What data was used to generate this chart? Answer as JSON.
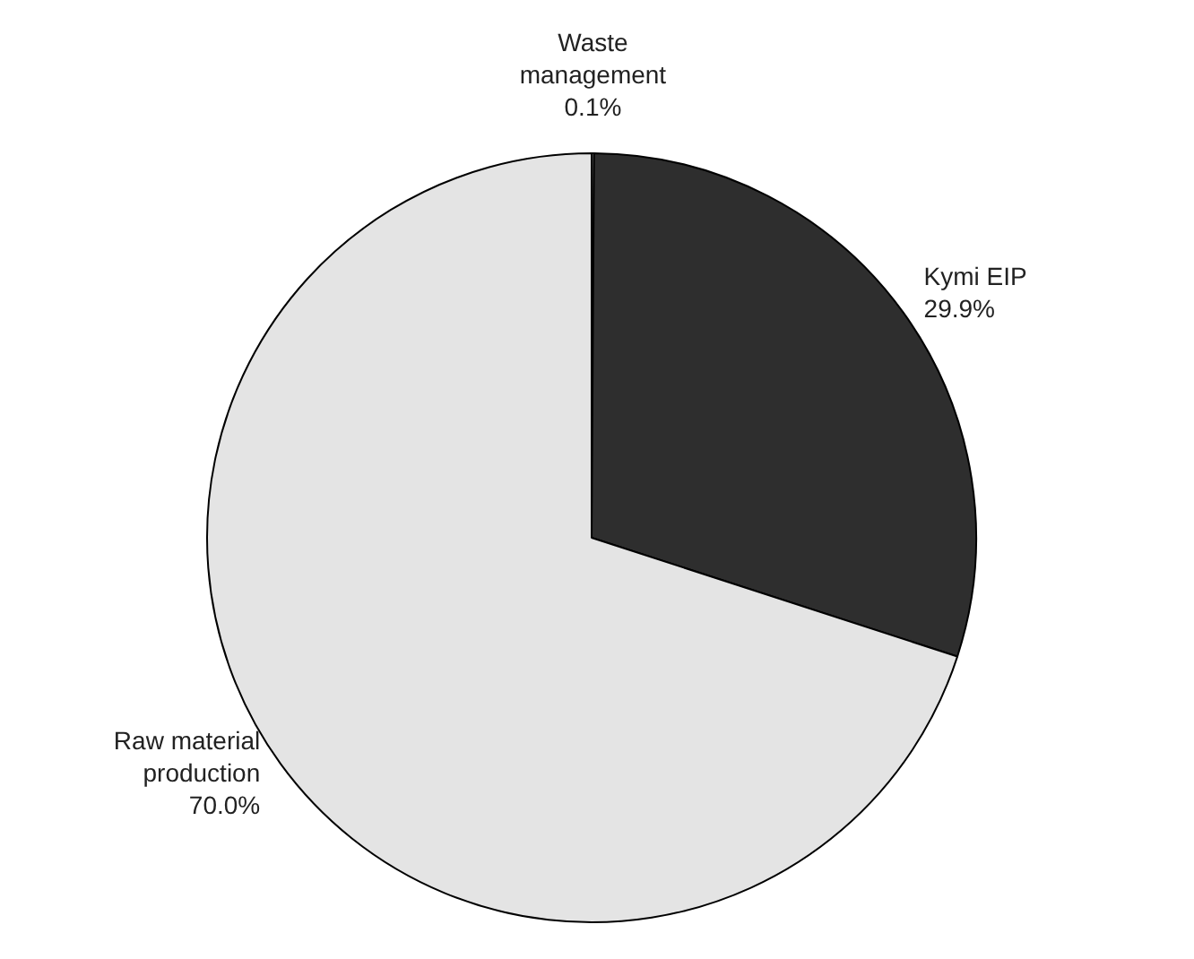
{
  "chart_data": {
    "type": "pie",
    "categories": [
      "Waste management",
      "Kymi EIP",
      "Raw material production"
    ],
    "values": [
      0.1,
      29.9,
      70.0
    ],
    "value_labels": [
      "0.1%",
      "29.9%",
      "70.0%"
    ],
    "colors": [
      "#9a9a9a",
      "#2e2e2e",
      "#e4e4e4"
    ],
    "legend": false
  }
}
